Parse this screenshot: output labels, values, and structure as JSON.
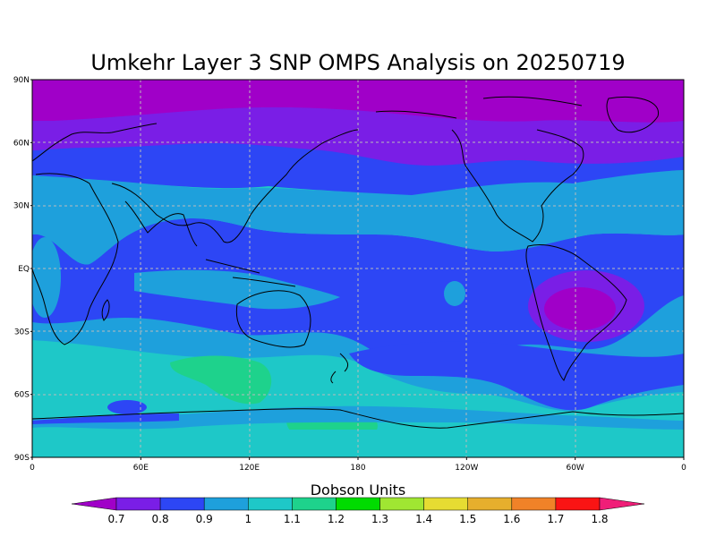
{
  "title": "Umkehr Layer 3 SNP OMPS Analysis on 20250719",
  "lat_labels": [
    "90N",
    "60N",
    "30N",
    "EQ",
    "30S",
    "60S",
    "90S"
  ],
  "lon_labels": [
    "0",
    "60E",
    "120E",
    "180",
    "120W",
    "60W",
    "0"
  ],
  "colorbar": {
    "title": "Dobson Units",
    "labels": [
      "0.7",
      "0.8",
      "0.9",
      "1",
      "1.1",
      "1.2",
      "1.3",
      "1.4",
      "1.5",
      "1.6",
      "1.7",
      "1.8"
    ],
    "colors": [
      "#a000c8",
      "#7a1ee6",
      "#2d46f5",
      "#1ea0dc",
      "#1ec8c8",
      "#1ed28c",
      "#00dc00",
      "#a0e632",
      "#e6dc32",
      "#e6af2d",
      "#f08228",
      "#fa1414",
      "#f01e78"
    ]
  },
  "chart_data": {
    "type": "heatmap",
    "title": "Umkehr Layer 3 SNP OMPS Analysis on 20250719",
    "xlabel": "",
    "ylabel": "",
    "xlim": [
      0,
      360
    ],
    "ylim": [
      -90,
      90
    ],
    "xticks": [
      "0",
      "60E",
      "120E",
      "180",
      "120W",
      "60W",
      "0"
    ],
    "yticks": [
      "90N",
      "60N",
      "30N",
      "EQ",
      "30S",
      "60S",
      "90S"
    ],
    "colorbar_label": "Dobson Units",
    "levels": [
      0.7,
      0.8,
      0.9,
      1.0,
      1.1,
      1.2,
      1.3,
      1.4,
      1.5,
      1.6,
      1.7,
      1.8
    ],
    "grid": true,
    "regions": [
      {
        "value_range": [
          0.6,
          0.7
        ],
        "lat_range": [
          72,
          90
        ],
        "lon_range": [
          0,
          360
        ]
      },
      {
        "value_range": [
          0.7,
          0.8
        ],
        "lat_range": [
          58,
          72
        ],
        "lon_range": [
          0,
          360
        ]
      },
      {
        "value_range": [
          0.8,
          0.9
        ],
        "lat_range": [
          45,
          58
        ],
        "lon_range": [
          0,
          360
        ]
      },
      {
        "value_range": [
          0.9,
          1.0
        ],
        "lat_range": [
          20,
          45
        ],
        "lon_range": [
          0,
          360
        ]
      },
      {
        "value_range": [
          0.8,
          0.9
        ],
        "lat_range": [
          -30,
          20
        ],
        "lon_range": [
          0,
          360
        ]
      },
      {
        "value_range": [
          0.9,
          1.0
        ],
        "lat_range": [
          -10,
          0
        ],
        "lon_range": [
          60,
          150
        ]
      },
      {
        "value_range": [
          0.7,
          0.8
        ],
        "lat_range": [
          -30,
          -5
        ],
        "lon_range": [
          300,
          320
        ]
      },
      {
        "value_range": [
          1.0,
          1.1
        ],
        "lat_range": [
          -85,
          -35
        ],
        "lon_range": [
          0,
          360
        ]
      },
      {
        "value_range": [
          0.8,
          0.9
        ],
        "lat_range": [
          -60,
          -35
        ],
        "lon_range": [
          150,
          340
        ]
      },
      {
        "value_range": [
          1.1,
          1.2
        ],
        "lat_range": [
          -55,
          -40
        ],
        "lon_range": [
          75,
          130
        ]
      },
      {
        "value_range": [
          1.1,
          1.2
        ],
        "lat_range": [
          -85,
          -65
        ],
        "lon_range": [
          140,
          200
        ]
      }
    ]
  }
}
